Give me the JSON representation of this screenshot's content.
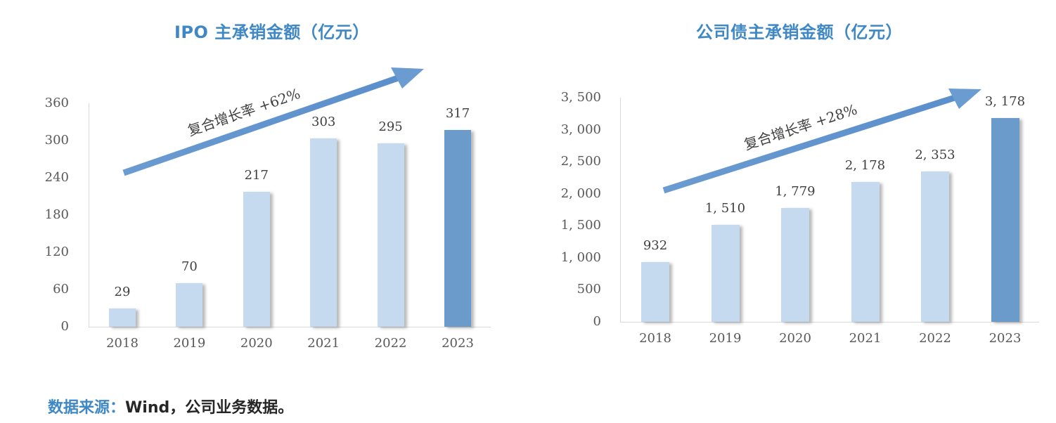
{
  "chart_data": [
    {
      "type": "bar",
      "title": "IPO 主承销金额（亿元）",
      "xlabel": "",
      "ylabel": "",
      "categories": [
        "2018",
        "2019",
        "2020",
        "2021",
        "2022",
        "2023"
      ],
      "values": [
        29,
        70,
        217,
        303,
        295,
        317
      ],
      "value_labels": [
        "29",
        "70",
        "217",
        "303",
        "295",
        "317"
      ],
      "ylim": [
        0,
        360
      ],
      "yticks": [
        "0",
        "60",
        "120",
        "180",
        "240",
        "300",
        "360"
      ],
      "grid": false,
      "legend": null,
      "colors": {
        "bar": "#C5D9EF",
        "highlight": "#6B9BCB"
      },
      "highlight_index": 5,
      "annotation": {
        "text": "复合增长率  +62%",
        "arrow_color": "#6A9BD1"
      }
    },
    {
      "type": "bar",
      "title": "公司债主承销金额（亿元）",
      "xlabel": "",
      "ylabel": "",
      "categories": [
        "2018",
        "2019",
        "2020",
        "2021",
        "2022",
        "2023"
      ],
      "values": [
        932,
        1510,
        1779,
        2178,
        2353,
        3178
      ],
      "value_labels": [
        "932",
        "1, 510",
        "1, 779",
        "2, 178",
        "2, 353",
        "3, 178"
      ],
      "ylim": [
        0,
        3500
      ],
      "yticks": [
        "0",
        "500",
        "1, 000",
        "1, 500",
        "2, 000",
        "2, 500",
        "3, 000",
        "3, 500"
      ],
      "grid": false,
      "legend": null,
      "colors": {
        "bar": "#C5D9EF",
        "highlight": "#6B9BCB"
      },
      "highlight_index": 5,
      "annotation": {
        "text": "复合增长率  +28%",
        "arrow_color": "#6A9BD1"
      }
    }
  ],
  "charts": {
    "ipo": {
      "title": "IPO 主承销金额（亿元）",
      "annotation": "复合增长率  +62%"
    },
    "bond": {
      "title": "公司债主承销金额（亿元）",
      "annotation": "复合增长率  +28%"
    }
  },
  "source": {
    "label": "数据来源：",
    "text": "Wind，公司业务数据。"
  }
}
